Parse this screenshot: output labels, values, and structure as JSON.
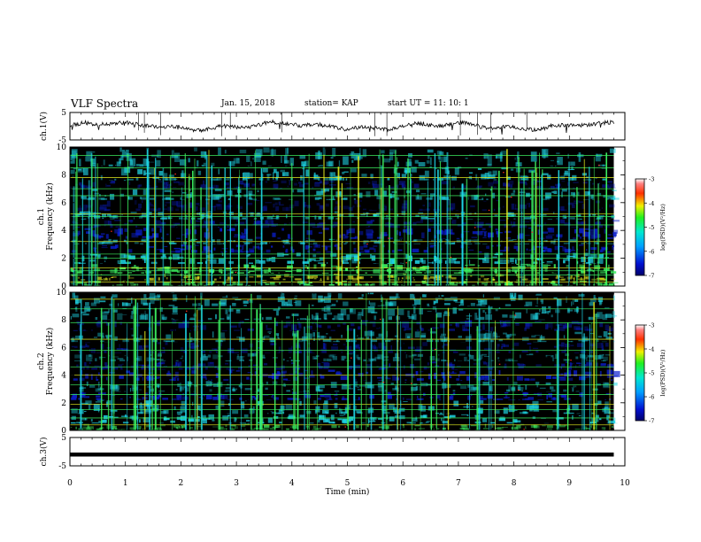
{
  "header": {
    "title": "VLF Spectra",
    "date": "Jan. 15, 2018",
    "station": "station= KAP",
    "start": "start  UT =   11: 10: 1"
  },
  "chart_data": [
    {
      "type": "line",
      "panel": "ch1-waveform",
      "ylabel": "ch.1(V)",
      "ylim": [
        -5,
        5
      ],
      "y_ticks": [
        "5",
        "-5"
      ],
      "x_range": [
        0,
        10
      ],
      "data_extent_min": [
        0,
        9.8
      ],
      "series": [
        {
          "style": "noisy trace, small amplitude around 0 V"
        }
      ]
    },
    {
      "type": "heatmap",
      "panel": "ch1-spectrogram",
      "ylabel": "ch.1  Frequency  (kHz)",
      "ylim": [
        0,
        10
      ],
      "y_ticks": [
        "0",
        "2",
        "4",
        "6",
        "8",
        "10"
      ],
      "x_range": [
        0,
        10
      ],
      "colorbar": {
        "label": "log(PSD)(V²/Hz)",
        "range": [
          -7,
          -3
        ],
        "ticks": [
          "-3",
          "-4",
          "-5",
          "-6",
          "-7"
        ],
        "scale": "rainbow (blue→cyan→green→yellow→red→white)"
      }
    },
    {
      "type": "heatmap",
      "panel": "ch2-spectrogram",
      "ylabel": "ch.2  Frequency  (kHz)",
      "ylim": [
        0,
        10
      ],
      "y_ticks": [
        "0",
        "2",
        "4",
        "6",
        "8",
        "10"
      ],
      "x_range": [
        0,
        10
      ],
      "colorbar": {
        "label": "log(PSD)(V²/Hz)",
        "range": [
          -7,
          -3
        ],
        "ticks": [
          "-3",
          "-4",
          "-5",
          "-6",
          "-7"
        ]
      }
    },
    {
      "type": "line",
      "panel": "ch3-waveform",
      "ylabel": "ch.3(V)",
      "ylim": [
        -5,
        5
      ],
      "y_ticks": [
        "5",
        "-5"
      ],
      "x_range": [
        0,
        10
      ],
      "series": [
        {
          "style": "flat thick line near -1 V"
        }
      ]
    }
  ],
  "xaxis": {
    "label": "Time  (min)",
    "ticks": [
      "0",
      "1",
      "2",
      "3",
      "4",
      "5",
      "6",
      "7",
      "8",
      "9",
      "10"
    ]
  },
  "colors": {
    "background": "#000000",
    "low": "#0a1ecc",
    "mid": "#1fd6e6",
    "high": "#3cf060",
    "peak": "#e8f020",
    "hot": "#ff2a1a"
  }
}
